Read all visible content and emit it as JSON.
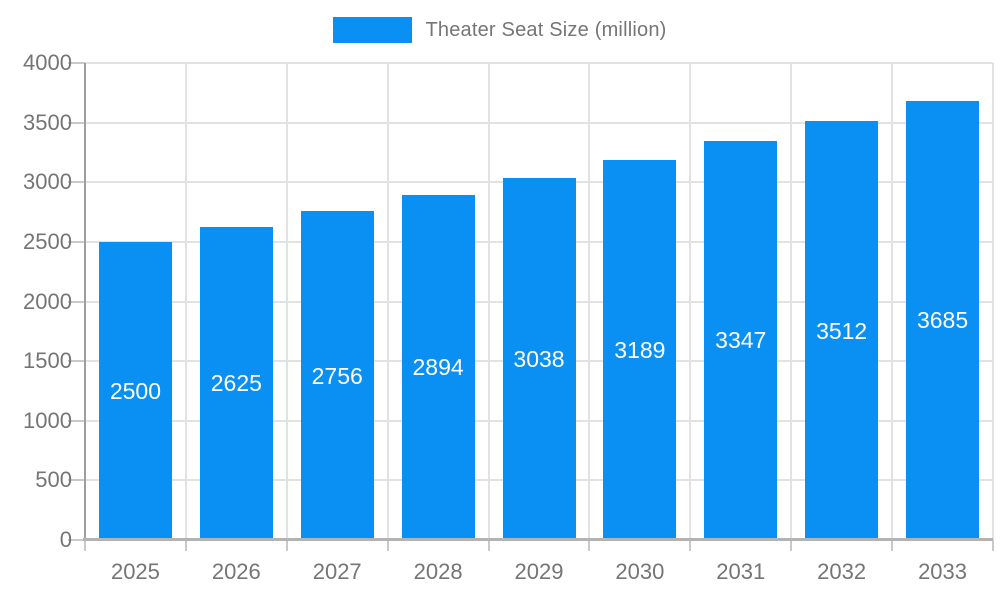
{
  "chart_data": {
    "type": "bar",
    "title": "Theater Seat Size (million)",
    "legend": {
      "position": "top",
      "label": "Theater Seat Size (million)"
    },
    "categories": [
      "2025",
      "2026",
      "2027",
      "2028",
      "2029",
      "2030",
      "2031",
      "2032",
      "2033"
    ],
    "values": [
      2500,
      2625,
      2756,
      2894,
      3038,
      3189,
      3347,
      3512,
      3685
    ],
    "xlabel": "",
    "ylabel": "",
    "ylim": [
      0,
      4000
    ],
    "yticks": [
      0,
      500,
      1000,
      1500,
      2000,
      2500,
      3000,
      3500,
      4000
    ],
    "grid": true,
    "bar_color": "#0a90f2",
    "value_label_color": "#ffffff",
    "axis_text_color": "#757575",
    "gridline_color": "#e2e2e2"
  }
}
